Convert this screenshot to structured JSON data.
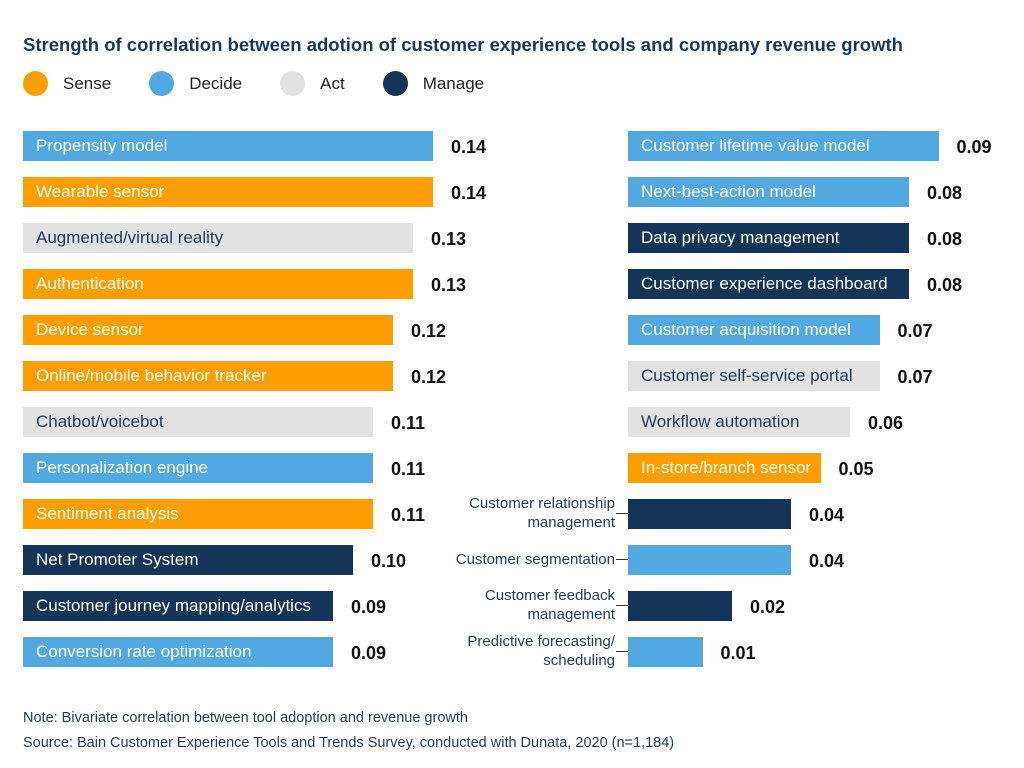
{
  "chart_data": {
    "type": "bar",
    "orientation": "horizontal",
    "title": "Strength of correlation between adotion of customer experience tools and company revenue growth",
    "legend": {
      "placement": "top-left",
      "entries": [
        {
          "name": "Sense",
          "color": "#FF9E00"
        },
        {
          "name": "Decide",
          "color": "#52A8E0"
        },
        {
          "name": "Act",
          "color": "#E2E2E2"
        },
        {
          "name": "Manage",
          "color": "#143557"
        }
      ]
    },
    "panels": [
      {
        "bars": [
          {
            "label": "Propensity model",
            "value": 0.14,
            "category": "Decide"
          },
          {
            "label": "Wearable sensor",
            "value": 0.14,
            "category": "Sense"
          },
          {
            "label": "Augmented/virtual reality",
            "value": 0.13,
            "category": "Act"
          },
          {
            "label": "Authentication",
            "value": 0.13,
            "category": "Sense"
          },
          {
            "label": "Device sensor",
            "value": 0.12,
            "category": "Sense"
          },
          {
            "label": "Online/mobile behavior tracker",
            "value": 0.12,
            "category": "Sense"
          },
          {
            "label": "Chatbot/voicebot",
            "value": 0.11,
            "category": "Act"
          },
          {
            "label": "Personalization engine",
            "value": 0.11,
            "category": "Decide"
          },
          {
            "label": "Sentiment analysis",
            "value": 0.11,
            "category": "Sense"
          },
          {
            "label": "Net Promoter System",
            "value": 0.1,
            "category": "Manage"
          },
          {
            "label": "Customer journey mapping/analytics",
            "value": 0.09,
            "category": "Manage"
          },
          {
            "label": "Conversion rate optimization",
            "value": 0.09,
            "category": "Decide"
          }
        ]
      },
      {
        "bars": [
          {
            "label": "Customer lifetime value model",
            "value": 0.09,
            "category": "Decide"
          },
          {
            "label": "Next-best-action model",
            "value": 0.08,
            "category": "Decide"
          },
          {
            "label": "Data privacy management",
            "value": 0.08,
            "category": "Manage"
          },
          {
            "label": "Customer experience dashboard",
            "value": 0.08,
            "category": "Manage"
          },
          {
            "label": "Customer acquisition model",
            "value": 0.07,
            "category": "Decide"
          },
          {
            "label": "Customer self-service portal",
            "value": 0.07,
            "category": "Act"
          },
          {
            "label": "Workflow automation",
            "value": 0.06,
            "category": "Act"
          },
          {
            "label": "In-store/branch sensor",
            "value": 0.05,
            "category": "Sense"
          },
          {
            "label": "Customer relationship management",
            "value": 0.04,
            "category": "Manage",
            "outside": true
          },
          {
            "label": "Customer segmentation",
            "value": 0.04,
            "category": "Decide",
            "outside": true
          },
          {
            "label": "Customer feedback management",
            "value": 0.02,
            "category": "Manage",
            "outside": true
          },
          {
            "label": "Predictive forecasting/ scheduling",
            "value": 0.01,
            "category": "Decide",
            "outside": true
          }
        ]
      }
    ],
    "value_labels": [
      "0.14",
      "0.14",
      "0.13",
      "0.13",
      "0.12",
      "0.12",
      "0.11",
      "0.11",
      "0.11",
      "0.10",
      "0.09",
      "0.09",
      "0.09",
      "0.08",
      "0.08",
      "0.08",
      "0.07",
      "0.07",
      "0.06",
      "0.05",
      "0.04",
      "0.04",
      "0.02",
      "0.01"
    ]
  },
  "footer": {
    "note": "Note: Bivariate correlation between tool adoption and revenue growth",
    "source": "Source: Bain Customer Experience Tools and Trends Survey, conducted with Dunata, 2020 (n=1,184)"
  }
}
